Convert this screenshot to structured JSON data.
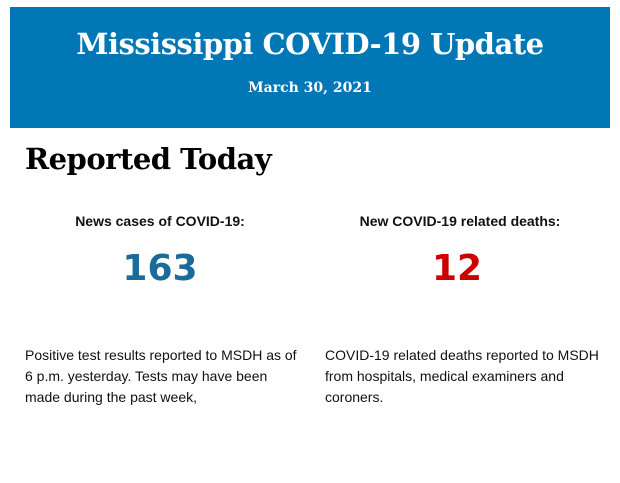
{
  "header": {
    "title": "Mississippi COVID-19 Update",
    "date": "March 30, 2021",
    "background_color": "#0277b5"
  },
  "section": {
    "title": "Reported Today"
  },
  "stats": [
    {
      "label": "News cases of COVID-19:",
      "value": "163",
      "color": "#1a6a9a",
      "description": "Positive test results reported to MSDH as of 6 p.m. yesterday. Tests may have been made during the past week,"
    },
    {
      "label": "New COVID-19 related deaths:",
      "value": "12",
      "color": "#cc0000",
      "description": "COVID-19 related deaths reported to MSDH from hospitals, medical examiners and coroners."
    }
  ]
}
